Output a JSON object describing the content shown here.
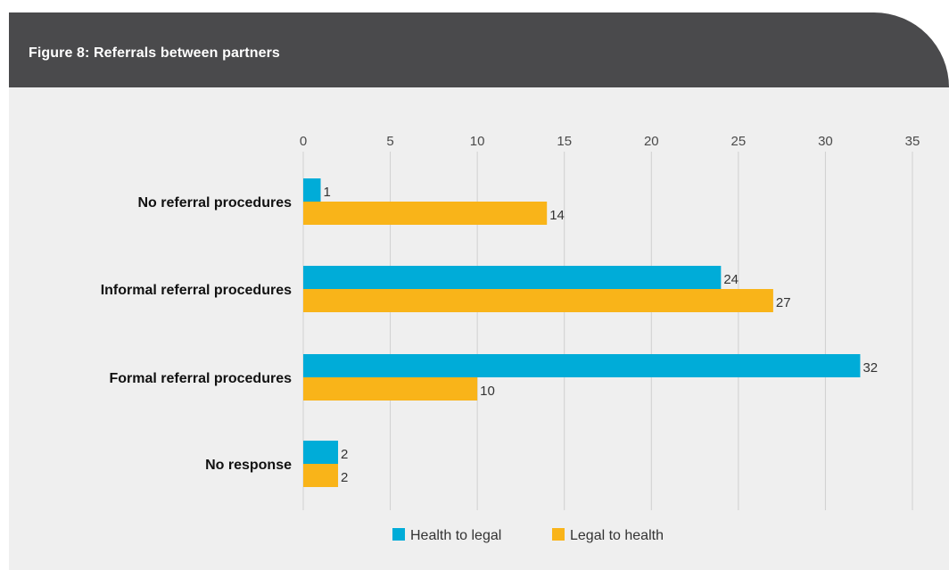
{
  "header": {
    "title": "Figure 8: Referrals between partners"
  },
  "chart_data": {
    "type": "bar",
    "orientation": "horizontal",
    "categories": [
      "No referral procedures",
      "Informal referral procedures",
      "Formal referral procedures",
      "No response"
    ],
    "series": [
      {
        "name": "Health to legal",
        "values": [
          1,
          24,
          32,
          2
        ],
        "color": "#00acd8"
      },
      {
        "name": "Legal to health",
        "values": [
          14,
          27,
          10,
          2
        ],
        "color": "#f9b419"
      }
    ],
    "xticks": [
      0,
      5,
      10,
      15,
      20,
      25,
      30,
      35
    ],
    "xlim": [
      0,
      35
    ],
    "grid": true,
    "axis_position": "top",
    "legend_position": "bottom"
  }
}
